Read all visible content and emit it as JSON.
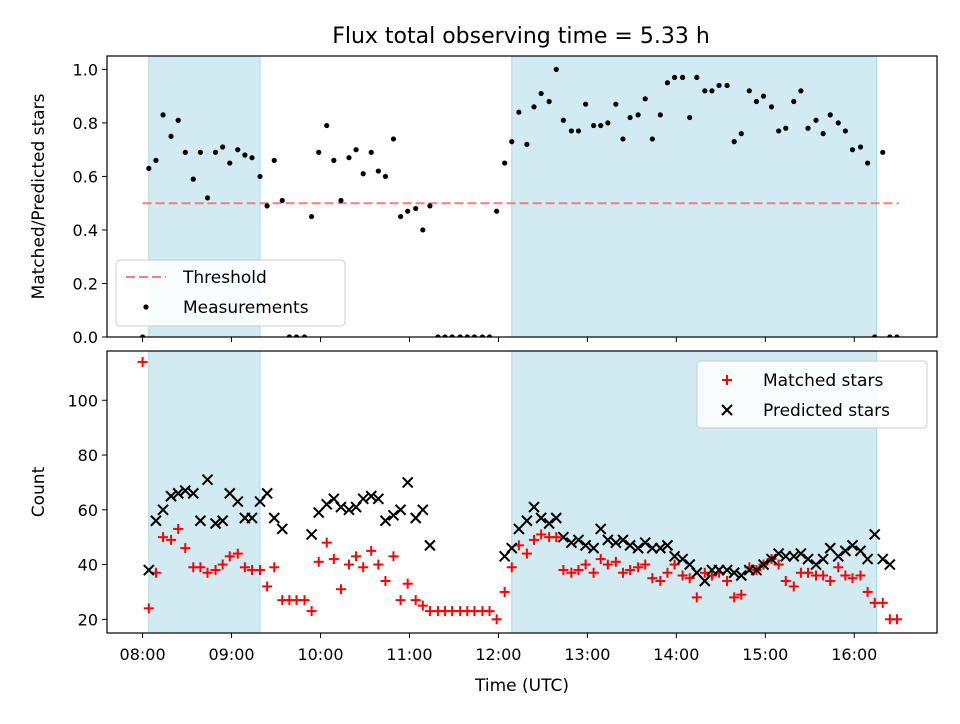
{
  "colors": {
    "shade": "#add8e6",
    "threshold": "#f08080",
    "matched": "#ff0000",
    "predicted": "#000000",
    "measurement": "#000000"
  },
  "chart_data": [
    {
      "type": "scatter",
      "title": "Flux total observing time = 5.33 h",
      "xlabel": "",
      "ylabel": "Matched/Predicted stars",
      "xlim": [
        7.6,
        16.93
      ],
      "ylim": [
        0.0,
        1.05
      ],
      "yticks": [
        0.0,
        0.2,
        0.4,
        0.6,
        0.8,
        1.0
      ],
      "ytick_labels": [
        "0.0",
        "0.2",
        "0.4",
        "0.6",
        "0.8",
        "1.0"
      ],
      "shaded_intervals": [
        [
          8.07,
          9.32
        ],
        [
          12.15,
          16.25
        ]
      ],
      "threshold": {
        "label": "Threshold",
        "value": 0.5,
        "x_range": [
          8.0,
          16.5
        ]
      },
      "legend": {
        "position": "lower-left",
        "entries": [
          "Threshold",
          "Measurements"
        ]
      },
      "series": [
        {
          "name": "Measurements",
          "x": [
            8.0,
            8.07,
            8.15,
            8.23,
            8.32,
            8.4,
            8.48,
            8.57,
            8.65,
            8.73,
            8.82,
            8.9,
            8.98,
            9.07,
            9.15,
            9.23,
            9.32,
            9.4,
            9.48,
            9.57,
            9.65,
            9.73,
            9.82,
            9.9,
            9.98,
            10.07,
            10.15,
            10.23,
            10.32,
            10.4,
            10.48,
            10.57,
            10.65,
            10.73,
            10.82,
            10.9,
            10.98,
            11.07,
            11.15,
            11.23,
            11.32,
            11.4,
            11.48,
            11.57,
            11.65,
            11.73,
            11.82,
            11.9,
            11.98,
            12.07,
            12.15,
            12.23,
            12.32,
            12.4,
            12.48,
            12.57,
            12.65,
            12.73,
            12.82,
            12.9,
            12.98,
            13.07,
            13.15,
            13.23,
            13.32,
            13.4,
            13.48,
            13.57,
            13.65,
            13.73,
            13.82,
            13.9,
            13.98,
            14.07,
            14.15,
            14.23,
            14.32,
            14.4,
            14.48,
            14.57,
            14.65,
            14.73,
            14.82,
            14.9,
            14.98,
            15.07,
            15.15,
            15.23,
            15.32,
            15.4,
            15.48,
            15.57,
            15.65,
            15.73,
            15.82,
            15.9,
            15.98,
            16.07,
            16.15,
            16.23,
            16.32,
            16.4,
            16.48
          ],
          "y": [
            0.0,
            0.63,
            0.66,
            0.83,
            0.75,
            0.81,
            0.69,
            0.59,
            0.69,
            0.52,
            0.69,
            0.71,
            0.65,
            0.7,
            0.68,
            0.67,
            0.6,
            0.49,
            0.66,
            0.51,
            0.0,
            0.0,
            0.0,
            0.45,
            0.69,
            0.79,
            0.66,
            0.51,
            0.67,
            0.7,
            0.61,
            0.69,
            0.62,
            0.6,
            0.74,
            0.45,
            0.47,
            0.48,
            0.4,
            0.49,
            0.0,
            0.0,
            0.0,
            0.0,
            0.0,
            0.0,
            0.0,
            0.0,
            0.47,
            0.65,
            0.73,
            0.84,
            0.72,
            0.86,
            0.91,
            0.88,
            1.0,
            0.81,
            0.77,
            0.77,
            0.87,
            0.79,
            0.79,
            0.8,
            0.87,
            0.74,
            0.82,
            0.83,
            0.89,
            0.74,
            0.83,
            0.95,
            0.97,
            0.97,
            0.82,
            0.97,
            0.92,
            0.92,
            0.94,
            0.94,
            0.73,
            0.76,
            0.92,
            0.88,
            0.9,
            0.86,
            0.77,
            0.78,
            0.88,
            0.92,
            0.78,
            0.81,
            0.76,
            0.83,
            0.8,
            0.77,
            0.7,
            0.71,
            0.65,
            0.0,
            0.69,
            0.0,
            0.0
          ]
        }
      ]
    },
    {
      "type": "scatter",
      "title": "",
      "xlabel": "Time (UTC)",
      "ylabel": "Count",
      "xlim": [
        7.6,
        16.93
      ],
      "ylim": [
        15,
        118
      ],
      "yticks": [
        20,
        40,
        60,
        80,
        100
      ],
      "ytick_labels": [
        "20",
        "40",
        "60",
        "80",
        "100"
      ],
      "xticks": [
        8,
        9,
        10,
        11,
        12,
        13,
        14,
        15,
        16
      ],
      "xtick_labels": [
        "08:00",
        "09:00",
        "10:00",
        "11:00",
        "12:00",
        "13:00",
        "14:00",
        "15:00",
        "16:00"
      ],
      "shaded_intervals": [
        [
          8.07,
          9.32
        ],
        [
          12.15,
          16.25
        ]
      ],
      "legend": {
        "position": "top-right",
        "entries": [
          "Matched stars",
          "Predicted stars"
        ]
      },
      "series": [
        {
          "name": "Matched stars",
          "marker": "+",
          "x": [
            8.0,
            8.07,
            8.15,
            8.23,
            8.32,
            8.4,
            8.48,
            8.57,
            8.65,
            8.73,
            8.82,
            8.9,
            8.98,
            9.07,
            9.15,
            9.23,
            9.32,
            9.4,
            9.48,
            9.57,
            9.65,
            9.73,
            9.82,
            9.9,
            9.98,
            10.07,
            10.15,
            10.23,
            10.32,
            10.4,
            10.48,
            10.57,
            10.65,
            10.73,
            10.82,
            10.9,
            10.98,
            11.07,
            11.15,
            11.23,
            11.32,
            11.4,
            11.48,
            11.57,
            11.65,
            11.73,
            11.82,
            11.9,
            11.98,
            12.07,
            12.15,
            12.23,
            12.32,
            12.4,
            12.48,
            12.57,
            12.65,
            12.73,
            12.82,
            12.9,
            12.98,
            13.07,
            13.15,
            13.23,
            13.32,
            13.4,
            13.48,
            13.57,
            13.65,
            13.73,
            13.82,
            13.9,
            13.98,
            14.07,
            14.15,
            14.23,
            14.32,
            14.4,
            14.48,
            14.57,
            14.65,
            14.73,
            14.82,
            14.9,
            14.98,
            15.07,
            15.15,
            15.23,
            15.32,
            15.4,
            15.48,
            15.57,
            15.65,
            15.73,
            15.82,
            15.9,
            15.98,
            16.07,
            16.15,
            16.23,
            16.32,
            16.4,
            16.48
          ],
          "y": [
            114,
            24,
            37,
            50,
            49,
            53,
            46,
            39,
            39,
            37,
            38,
            40,
            43,
            44,
            39,
            38,
            38,
            32,
            39,
            27,
            27,
            27,
            27,
            23,
            41,
            48,
            42,
            31,
            40,
            43,
            39,
            45,
            40,
            34,
            43,
            27,
            33,
            27,
            25,
            23,
            23,
            23,
            23,
            23,
            23,
            23,
            23,
            23,
            20,
            30,
            39,
            47,
            44,
            49,
            51,
            50,
            50,
            38,
            37,
            38,
            40,
            37,
            42,
            40,
            41,
            37,
            38,
            39,
            40,
            35,
            34,
            37,
            40,
            36,
            35,
            28,
            37,
            36,
            37,
            34,
            28,
            29,
            39,
            38,
            40,
            42,
            40,
            34,
            32,
            37,
            37,
            36,
            36,
            34,
            39,
            36,
            35,
            36,
            30,
            26,
            26,
            20,
            20
          ]
        },
        {
          "name": "Predicted stars",
          "marker": "x",
          "x": [
            8.07,
            8.15,
            8.23,
            8.32,
            8.4,
            8.48,
            8.57,
            8.65,
            8.73,
            8.82,
            8.9,
            8.98,
            9.07,
            9.15,
            9.23,
            9.32,
            9.4,
            9.48,
            9.57,
            9.9,
            9.98,
            10.07,
            10.15,
            10.23,
            10.32,
            10.4,
            10.48,
            10.57,
            10.65,
            10.73,
            10.82,
            10.9,
            10.98,
            11.07,
            11.15,
            11.23,
            12.07,
            12.15,
            12.23,
            12.32,
            12.4,
            12.48,
            12.57,
            12.65,
            12.73,
            12.82,
            12.9,
            12.98,
            13.07,
            13.15,
            13.23,
            13.32,
            13.4,
            13.48,
            13.57,
            13.65,
            13.73,
            13.82,
            13.9,
            13.98,
            14.07,
            14.15,
            14.23,
            14.32,
            14.4,
            14.48,
            14.57,
            14.65,
            14.73,
            14.82,
            14.9,
            14.98,
            15.07,
            15.15,
            15.23,
            15.32,
            15.4,
            15.48,
            15.57,
            15.65,
            15.73,
            15.82,
            15.9,
            15.98,
            16.07,
            16.15,
            16.23,
            16.32,
            16.4
          ],
          "y": [
            38,
            56,
            60,
            65,
            66,
            67,
            66,
            56,
            71,
            55,
            56,
            66,
            63,
            57,
            57,
            63,
            66,
            57,
            53,
            51,
            59,
            62,
            64,
            61,
            60,
            61,
            64,
            65,
            64,
            56,
            58,
            60,
            70,
            57,
            60,
            47,
            43,
            46,
            53,
            56,
            61,
            57,
            55,
            57,
            50,
            48,
            49,
            47,
            46,
            53,
            49,
            48,
            49,
            47,
            46,
            48,
            46,
            46,
            47,
            43,
            42,
            40,
            37,
            34,
            38,
            38,
            38,
            37,
            36,
            38,
            38,
            40,
            42,
            44,
            43,
            43,
            44,
            42,
            40,
            42,
            46,
            43,
            45,
            47,
            45,
            42,
            51,
            42,
            40
          ]
        }
      ]
    }
  ]
}
